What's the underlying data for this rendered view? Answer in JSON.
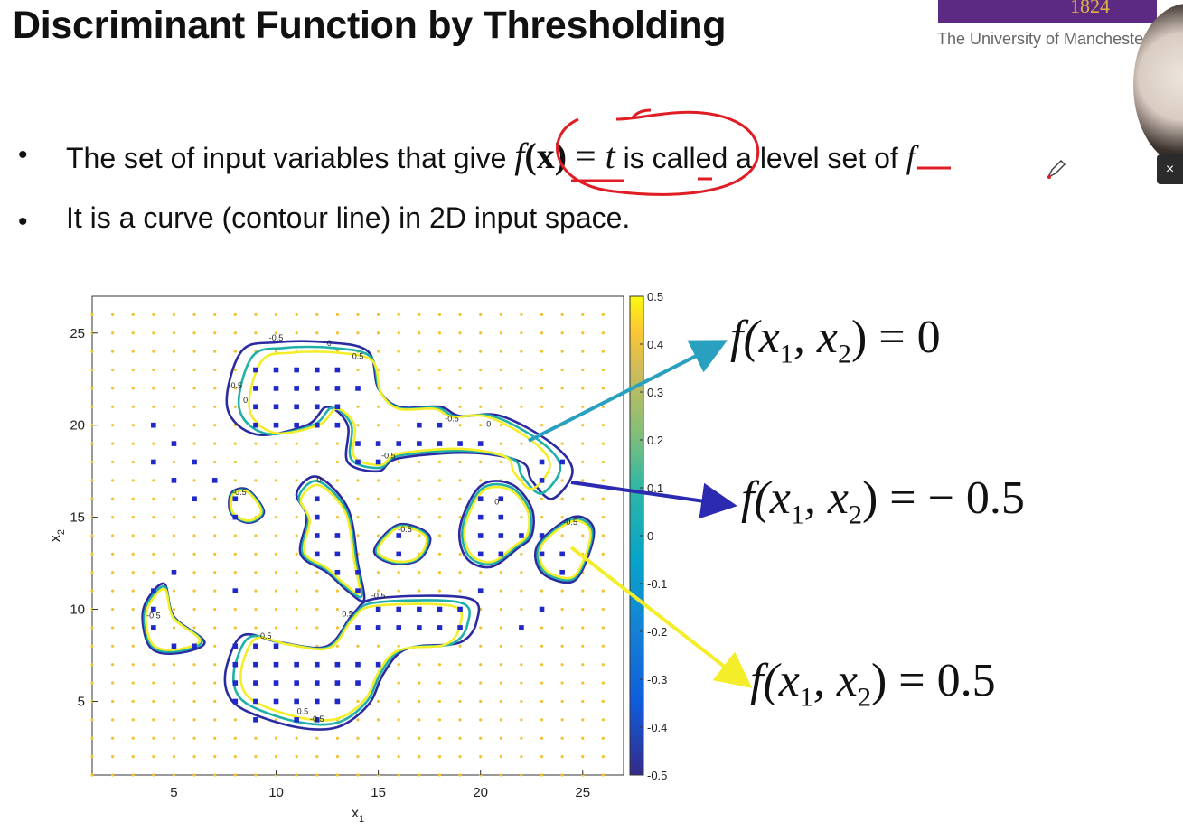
{
  "slide": {
    "title": "Discriminant Function by Thresholding",
    "logo_year": "1824",
    "university": "The University of Manchester",
    "close_glyph": "×",
    "bullets": [
      {
        "pre": "The set of input variables that give ",
        "eq_f": "f",
        "eq_x": "(x)",
        "eq_eq": " = ",
        "eq_t": "t",
        "post": " is called a level set of ",
        "post_f": "f"
      },
      {
        "text": "It is a curve (contour line) in 2D input space."
      }
    ],
    "bullet_glyph": "•"
  },
  "annotations": {
    "level0": {
      "left": "f(x",
      "sub1": "1",
      "mid": ", x",
      "sub2": "2",
      "right": ") = 0",
      "arrow_color": "#2aa0c0"
    },
    "levelneg": {
      "left": "f(x",
      "sub1": "1",
      "mid": ", x",
      "sub2": "2",
      "right": ") = − 0.5",
      "arrow_color": "#2b2ab0"
    },
    "levelpos": {
      "left": "f(x",
      "sub1": "1",
      "mid": ", x",
      "sub2": "2",
      "right": ") = 0.5",
      "arrow_color": "#f4ee2a"
    },
    "pen_color": "#e01c24"
  },
  "chart_data": {
    "type": "contour",
    "xlabel": "x1",
    "ylabel": "x2",
    "xlim": [
      1,
      27
    ],
    "ylim": [
      1,
      27
    ],
    "xticks": [
      5,
      10,
      15,
      20,
      25
    ],
    "yticks": [
      5,
      10,
      15,
      20,
      25
    ],
    "colorbar": {
      "limits": [
        -0.5,
        0.5
      ],
      "ticks": [
        "0.5",
        "0.4",
        "0.3",
        "0.2",
        "0.1",
        "0",
        "-0.1",
        "-0.2",
        "-0.3",
        "-0.4",
        "-0.5"
      ]
    },
    "contour_levels": [
      -0.5,
      0,
      0.5
    ],
    "contour_label_text": [
      "-0.5",
      "0",
      "0.5"
    ],
    "level_colors": {
      "-0.5": "#2b2aa0",
      "0": "#20b0a8",
      "0.5": "#f4ee2a"
    },
    "grid_marker_color": "#f2c230",
    "class_marker_color": "#1f28c8",
    "blue_points": [
      [
        9,
        23
      ],
      [
        10,
        23
      ],
      [
        11,
        23
      ],
      [
        12,
        23
      ],
      [
        13,
        23
      ],
      [
        9,
        22
      ],
      [
        10,
        22
      ],
      [
        11,
        22
      ],
      [
        12,
        22
      ],
      [
        13,
        22
      ],
      [
        14,
        22
      ],
      [
        9,
        21
      ],
      [
        10,
        21
      ],
      [
        11,
        21
      ],
      [
        12,
        21
      ],
      [
        13,
        21
      ],
      [
        9,
        20
      ],
      [
        10,
        20
      ],
      [
        11,
        20
      ],
      [
        12,
        20
      ],
      [
        13,
        20
      ],
      [
        17,
        20
      ],
      [
        18,
        20
      ],
      [
        14,
        19
      ],
      [
        15,
        19
      ],
      [
        16,
        19
      ],
      [
        17,
        19
      ],
      [
        18,
        19
      ],
      [
        19,
        19
      ],
      [
        20,
        19
      ],
      [
        14,
        18
      ],
      [
        15,
        18
      ],
      [
        23,
        18
      ],
      [
        24,
        18
      ],
      [
        23,
        17
      ],
      [
        4,
        20
      ],
      [
        5,
        19
      ],
      [
        4,
        18
      ],
      [
        6,
        18
      ],
      [
        5,
        17
      ],
      [
        7,
        17
      ],
      [
        6,
        16
      ],
      [
        8,
        16
      ],
      [
        8,
        15
      ],
      [
        12,
        16
      ],
      [
        12,
        15
      ],
      [
        12,
        14
      ],
      [
        13,
        14
      ],
      [
        12,
        13
      ],
      [
        13,
        13
      ],
      [
        13,
        12
      ],
      [
        14,
        12
      ],
      [
        14,
        11
      ],
      [
        20,
        16
      ],
      [
        21,
        16
      ],
      [
        20,
        15
      ],
      [
        21,
        15
      ],
      [
        20,
        14
      ],
      [
        21,
        14
      ],
      [
        22,
        14
      ],
      [
        23,
        14
      ],
      [
        20,
        13
      ],
      [
        21,
        13
      ],
      [
        23,
        13
      ],
      [
        24,
        13
      ],
      [
        24,
        12
      ],
      [
        16,
        13
      ],
      [
        16,
        14
      ],
      [
        5,
        12
      ],
      [
        8,
        11
      ],
      [
        20,
        11
      ],
      [
        15,
        10
      ],
      [
        16,
        10
      ],
      [
        17,
        10
      ],
      [
        18,
        10
      ],
      [
        19,
        10
      ],
      [
        23,
        10
      ],
      [
        14,
        9
      ],
      [
        15,
        9
      ],
      [
        16,
        9
      ],
      [
        17,
        9
      ],
      [
        18,
        9
      ],
      [
        19,
        9
      ],
      [
        22,
        9
      ],
      [
        4,
        11
      ],
      [
        4,
        10
      ],
      [
        4,
        9
      ],
      [
        5,
        8
      ],
      [
        6,
        8
      ],
      [
        8,
        8
      ],
      [
        9,
        8
      ],
      [
        10,
        8
      ],
      [
        8,
        7
      ],
      [
        9,
        7
      ],
      [
        10,
        7
      ],
      [
        11,
        7
      ],
      [
        12,
        7
      ],
      [
        13,
        7
      ],
      [
        14,
        7
      ],
      [
        15,
        7
      ],
      [
        8,
        6
      ],
      [
        9,
        6
      ],
      [
        10,
        6
      ],
      [
        11,
        6
      ],
      [
        12,
        6
      ],
      [
        13,
        6
      ],
      [
        14,
        6
      ],
      [
        8,
        5
      ],
      [
        9,
        5
      ],
      [
        10,
        5
      ],
      [
        11,
        5
      ],
      [
        12,
        5
      ],
      [
        13,
        5
      ],
      [
        9,
        4
      ],
      [
        11,
        4
      ],
      [
        12,
        4
      ]
    ],
    "regions": [
      {
        "name": "upper-left",
        "outline": [
          [
            7.6,
            21
          ],
          [
            8.3,
            24
          ],
          [
            10,
            24.5
          ],
          [
            12.5,
            24.5
          ],
          [
            14.5,
            24
          ],
          [
            15,
            22
          ],
          [
            16,
            21
          ],
          [
            18,
            21
          ],
          [
            19,
            20.5
          ],
          [
            21,
            20.5
          ],
          [
            23.5,
            19
          ],
          [
            24.5,
            17.5
          ],
          [
            23.5,
            16
          ],
          [
            22.5,
            17
          ],
          [
            22,
            18
          ],
          [
            19.5,
            18.5
          ],
          [
            16,
            18.2
          ],
          [
            15,
            17.5
          ],
          [
            13.5,
            18
          ],
          [
            13.5,
            20
          ],
          [
            12.5,
            21
          ],
          [
            11.5,
            20
          ],
          [
            9,
            19.5
          ]
        ]
      },
      {
        "name": "right-blob",
        "outline": [
          [
            19,
            14.5
          ],
          [
            20,
            16.7
          ],
          [
            21.5,
            16.8
          ],
          [
            22.5,
            15.5
          ],
          [
            22.5,
            14
          ],
          [
            21.8,
            13.3
          ],
          [
            20.5,
            12.3
          ],
          [
            19.3,
            12.8
          ]
        ]
      },
      {
        "name": "far-right-blob",
        "outline": [
          [
            22.8,
            13.5
          ],
          [
            24.5,
            15
          ],
          [
            25.5,
            14.5
          ],
          [
            25.3,
            13
          ],
          [
            24.5,
            11.5
          ],
          [
            23,
            12
          ]
        ]
      },
      {
        "name": "middle-column",
        "outline": [
          [
            11,
            16.3
          ],
          [
            12,
            17.2
          ],
          [
            13.5,
            15.5
          ],
          [
            14,
            12.5
          ],
          [
            14.3,
            10.5
          ],
          [
            13.5,
            11
          ],
          [
            12.5,
            12
          ],
          [
            11.2,
            13
          ],
          [
            11.5,
            15
          ]
        ]
      },
      {
        "name": "small-center",
        "outline": [
          [
            14.8,
            13.2
          ],
          [
            16,
            14.6
          ],
          [
            17.5,
            14
          ],
          [
            17,
            12.7
          ],
          [
            15.7,
            12.5
          ]
        ]
      },
      {
        "name": "small-left",
        "outline": [
          [
            7.8,
            16.3
          ],
          [
            8.6,
            16.5
          ],
          [
            9.4,
            15.3
          ],
          [
            8.7,
            14.7
          ],
          [
            7.8,
            15.2
          ]
        ]
      },
      {
        "name": "far-left",
        "outline": [
          [
            3.5,
            10
          ],
          [
            4.5,
            11.4
          ],
          [
            5,
            9.6
          ],
          [
            6.5,
            8.2
          ],
          [
            5,
            7.6
          ],
          [
            3.8,
            8
          ]
        ]
      },
      {
        "name": "bottom-blob",
        "outline": [
          [
            7.6,
            7
          ],
          [
            8.4,
            8.6
          ],
          [
            10.2,
            8.2
          ],
          [
            12.5,
            8
          ],
          [
            13.8,
            9.8
          ],
          [
            15,
            10.6
          ],
          [
            19.4,
            10.6
          ],
          [
            19.8,
            9.3
          ],
          [
            19,
            8.2
          ],
          [
            17,
            8
          ],
          [
            16,
            7.6
          ],
          [
            15.2,
            6.4
          ],
          [
            14.5,
            4.8
          ],
          [
            13,
            3.6
          ],
          [
            11,
            3.6
          ],
          [
            8.5,
            4.5
          ],
          [
            7.6,
            5.5
          ]
        ]
      }
    ]
  }
}
